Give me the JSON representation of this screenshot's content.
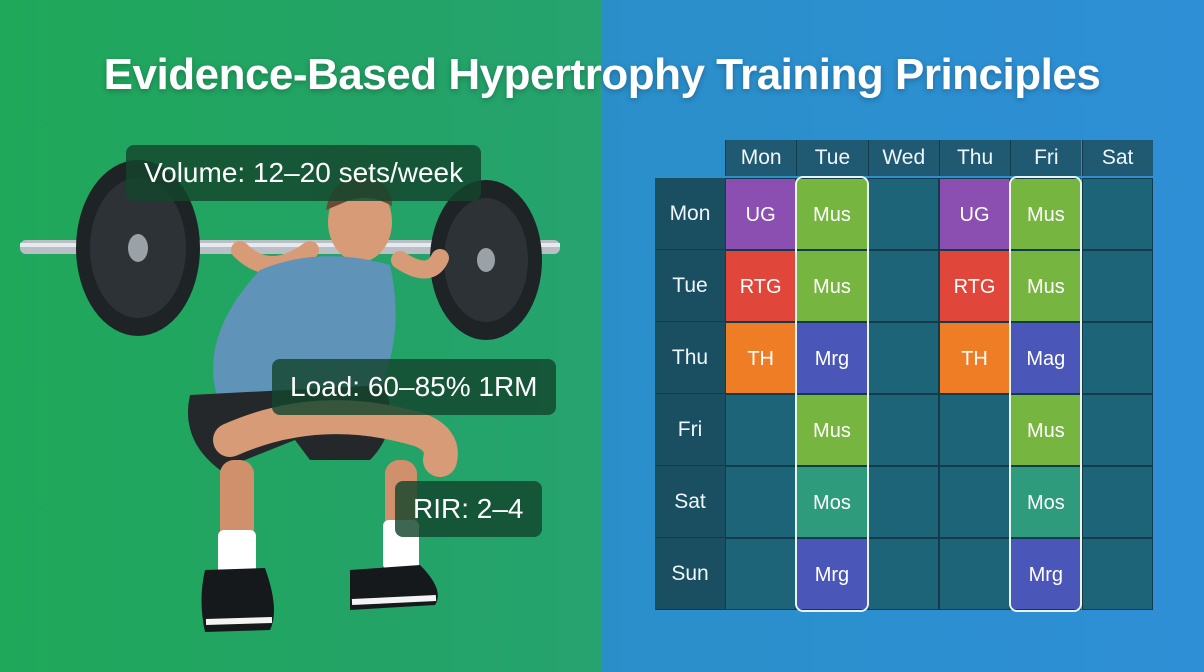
{
  "title": "Evidence-Based Hypertrophy Training Principles",
  "labels": {
    "volume": "Volume: 12–20 sets/week",
    "load": "Load: 60–85% 1RM",
    "rir": "RIR: 2–4"
  },
  "schedule": {
    "columns": [
      "Mon",
      "Tue",
      "Wed",
      "Thu",
      "Fri",
      "Sat"
    ],
    "rows": [
      {
        "label": "Mon",
        "cells": [
          "UG",
          "Mus",
          "",
          "UG",
          "Mus",
          ""
        ]
      },
      {
        "label": "Tue",
        "cells": [
          "RTG",
          "Mus",
          "",
          "RTG",
          "Mus",
          ""
        ]
      },
      {
        "label": "Thu",
        "cells": [
          "TH",
          "Mrg",
          "",
          "TH",
          "Mag",
          ""
        ]
      },
      {
        "label": "Fri",
        "cells": [
          "",
          "Mus",
          "",
          "",
          "Mus",
          ""
        ]
      },
      {
        "label": "Sat",
        "cells": [
          "",
          "Mos",
          "",
          "",
          "Mos",
          ""
        ]
      },
      {
        "label": "Sun",
        "cells": [
          "",
          "Mrg",
          "",
          "",
          "Mrg",
          ""
        ]
      }
    ],
    "colors": {
      "UG": "#8a4fb0",
      "RTG": "#e0473a",
      "TH": "#ee7d26",
      "Mus": "#76b640",
      "Mrg": "#4a56b8",
      "Mag": "#4a56b8",
      "Mos": "#2e9b7d",
      "empty": "#1e6479"
    },
    "highlighted_columns": [
      "Tue",
      "Fri"
    ]
  }
}
